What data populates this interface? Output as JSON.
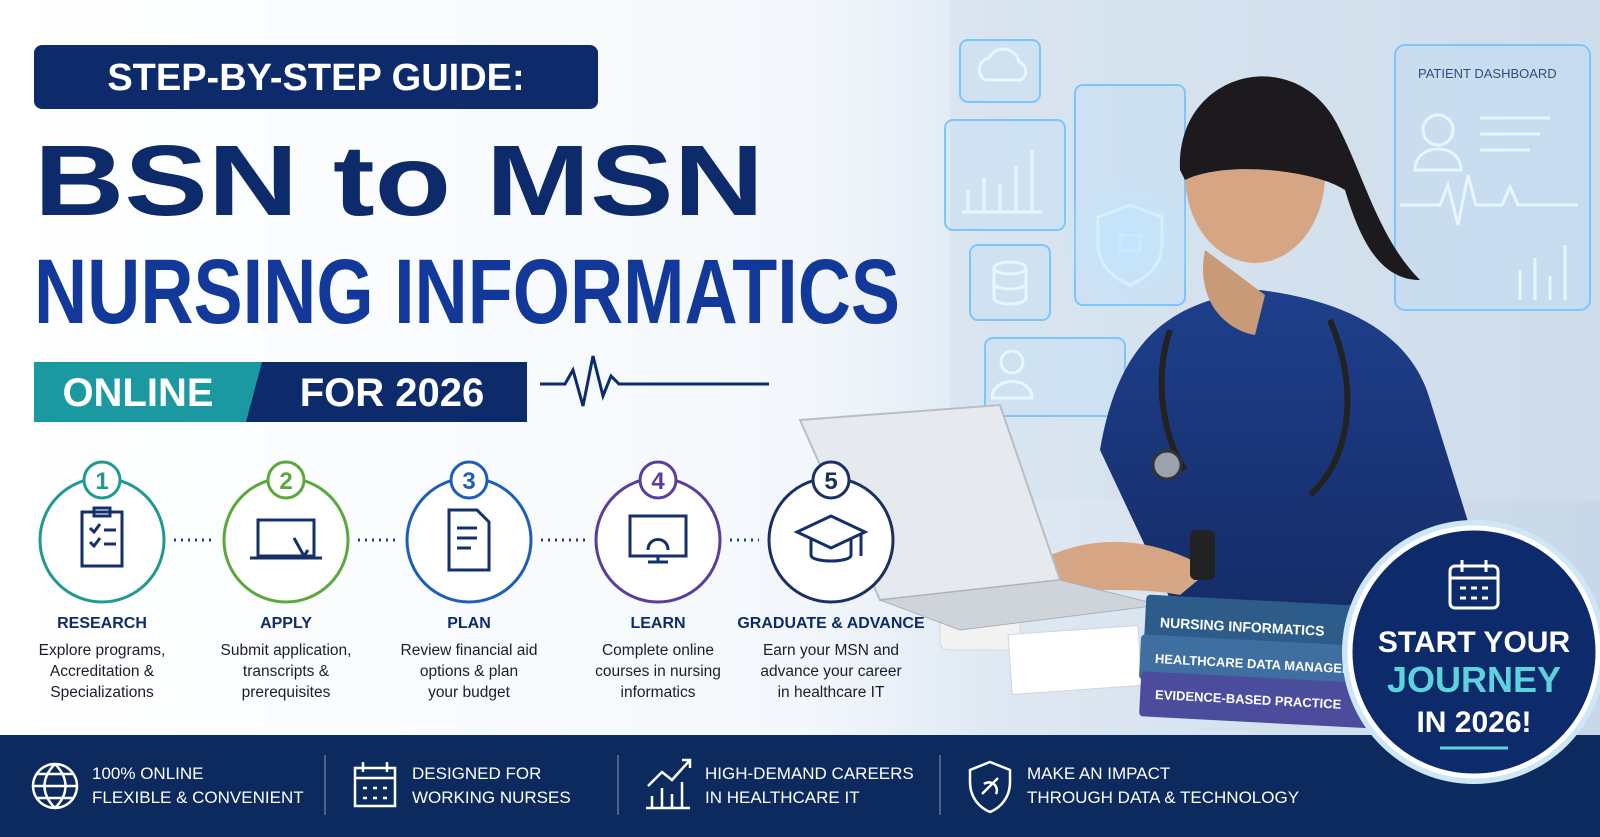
{
  "header": {
    "kicker": "STEP-BY-STEP GUIDE:",
    "title_line1": "BSN to MSN",
    "title_line2": "NURSING INFORMATICS",
    "tag_left": "ONLINE",
    "tag_right": "FOR 2026"
  },
  "steps": [
    {
      "number": "1",
      "title": "RESEARCH",
      "lines": [
        "Explore programs,",
        "Accreditation &",
        "Specializations"
      ]
    },
    {
      "number": "2",
      "title": "APPLY",
      "lines": [
        "Submit application,",
        "transcripts &",
        "prerequisites"
      ]
    },
    {
      "number": "3",
      "title": "PLAN",
      "lines": [
        "Review financial aid",
        "options & plan",
        "your budget"
      ]
    },
    {
      "number": "4",
      "title": "LEARN",
      "lines": [
        "Complete online",
        "courses in nursing",
        "informatics"
      ]
    },
    {
      "number": "5",
      "title": "GRADUATE & ADVANCE",
      "lines": [
        "Earn your MSN and",
        "advance your career",
        "in healthcare IT"
      ]
    }
  ],
  "features": [
    {
      "lines": [
        "100% ONLINE",
        "FLEXIBLE & CONVENIENT"
      ]
    },
    {
      "lines": [
        "DESIGNED FOR",
        "WORKING NURSES"
      ]
    },
    {
      "lines": [
        "HIGH-DEMAND CAREERS",
        "IN HEALTHCARE IT"
      ]
    },
    {
      "lines": [
        "MAKE AN IMPACT",
        "THROUGH DATA & TECHNOLOGY"
      ]
    }
  ],
  "illustration": {
    "dashboard_label": "PATIENT DASHBOARD",
    "books": [
      "NURSING INFORMATICS",
      "HEALTHCARE DATA MANAGEMENT",
      "EVIDENCE-BASED PRACTICE"
    ]
  },
  "cta": {
    "lines": [
      "START YOUR",
      "JOURNEY",
      "IN 2026!"
    ]
  }
}
